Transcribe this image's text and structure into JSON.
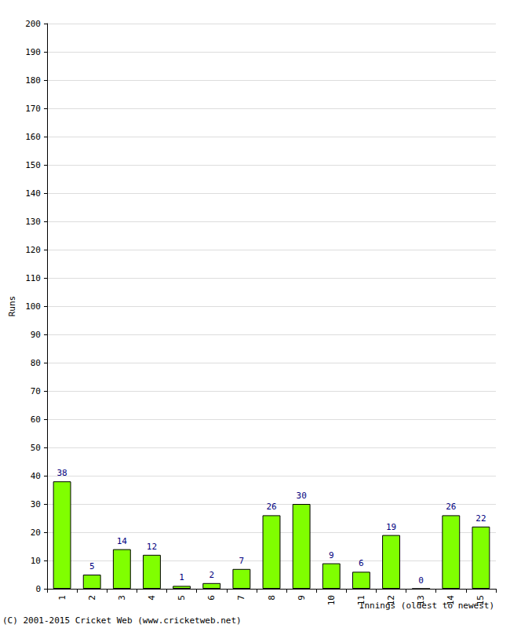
{
  "chart_data": {
    "type": "bar",
    "categories": [
      "1",
      "2",
      "3",
      "4",
      "5",
      "6",
      "7",
      "8",
      "9",
      "10",
      "11",
      "12",
      "13",
      "14",
      "15"
    ],
    "values": [
      38,
      5,
      14,
      12,
      1,
      2,
      7,
      26,
      30,
      9,
      6,
      19,
      0,
      26,
      22
    ],
    "color": "#80ff00",
    "x_label": "Innings (oldest to newest)",
    "y_label": "Runs",
    "annotations": [
      "(C) 2001-2015 Cricket Web (www.cricketweb.net)"
    ],
    "ylim": [
      0,
      200
    ],
    "yticks": [
      0,
      10,
      20,
      30,
      40,
      50,
      60,
      70,
      80,
      90,
      100,
      110,
      120,
      130,
      140,
      150,
      160,
      170,
      180,
      190,
      200
    ],
    "grid": true,
    "data_labels": true
  }
}
